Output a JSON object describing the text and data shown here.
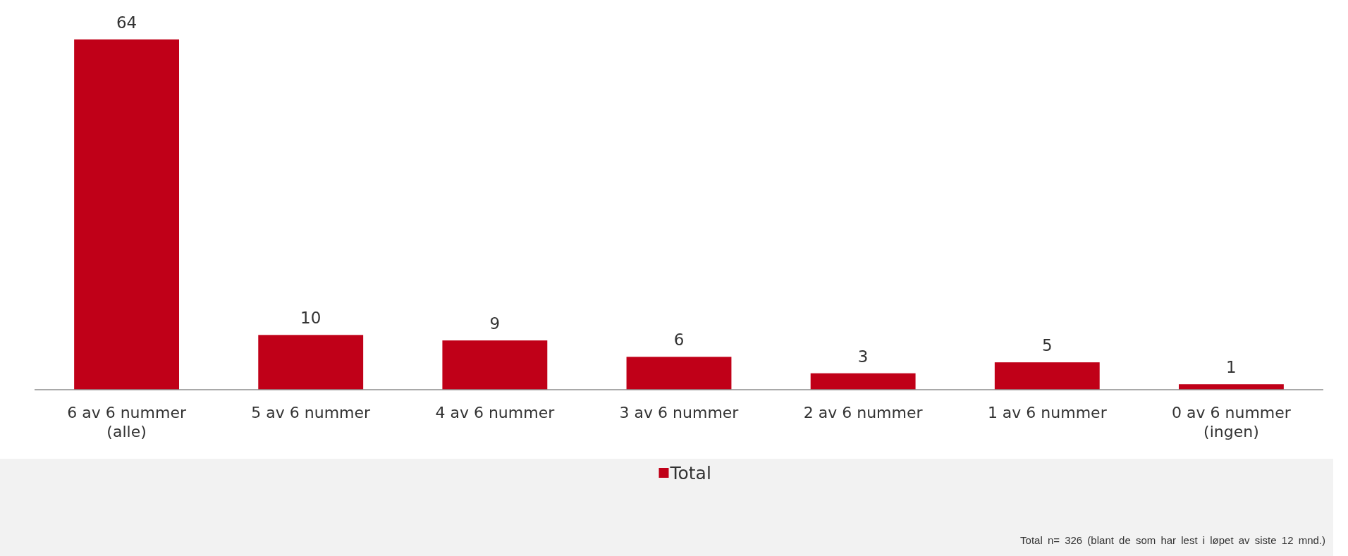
{
  "chart_data": {
    "type": "bar",
    "categories": [
      "6 av 6 nummer\n(alle)",
      "5 av 6 nummer",
      "4 av 6 nummer",
      "3 av 6 nummer",
      "2 av 6 nummer",
      "1 av 6 nummer",
      "0 av 6 nummer\n(ingen)"
    ],
    "series": [
      {
        "name": "Total",
        "color": "#c00018",
        "values": [
          64,
          10,
          9,
          6,
          3,
          5,
          1
        ]
      }
    ],
    "data_labels": true,
    "legend": "bottom",
    "annotations": [
      "Total n= 326  (blant de som har lest i løpet av siste 12 mnd.)"
    ]
  }
}
